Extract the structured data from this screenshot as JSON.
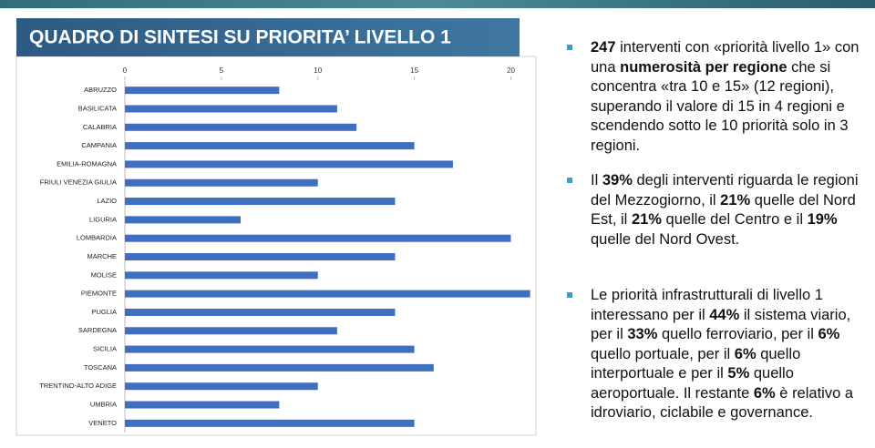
{
  "chart_data": {
    "type": "barh",
    "title": "QUADRO DI SINTESI SU PRIORITA’ LIVELLO 1",
    "categories": [
      "ABRUZZO",
      "BASILICATA",
      "CALABRIA",
      "CAMPANIA",
      "EMILIA-ROMAGNA",
      "FRIULI VENEZIA GIULIA",
      "LAZIO",
      "LIGURIA",
      "LOMBARDIA",
      "MARCHE",
      "MOLISE",
      "PIEMONTE",
      "PUGLIA",
      "SARDEGNA",
      "SICILIA",
      "TOSCANA",
      "TRENTINO-ALTO ADIGE",
      "UMBRIA",
      "VENETO"
    ],
    "values": [
      8,
      11,
      12,
      15,
      17,
      10,
      14,
      6,
      20,
      14,
      10,
      21,
      14,
      11,
      15,
      16,
      10,
      8,
      15
    ],
    "color": "#3f6fc0",
    "xlim": [
      0,
      21.3
    ],
    "xticks": [
      0,
      5,
      10,
      15,
      20
    ]
  },
  "bullets": [
    [
      {
        "text": "247",
        "bold": true
      },
      {
        "text": " interventi con «priorità livello 1» con una ",
        "bold": false
      },
      {
        "text": "numerosità per regione",
        "bold": true
      },
      {
        "text": " che si concentra «tra 10 e 15» (12 regioni), superando il valore di 15 in 4 regioni e scendendo sotto le 10 priorità solo in 3 regioni.",
        "bold": false
      }
    ],
    [
      {
        "text": "Il ",
        "bold": false
      },
      {
        "text": "39%",
        "bold": true
      },
      {
        "text": " degli interventi riguarda le regioni del Mezzogiorno, il ",
        "bold": false
      },
      {
        "text": "21%",
        "bold": true
      },
      {
        "text": " quelle del Nord Est, il ",
        "bold": false
      },
      {
        "text": "21%",
        "bold": true
      },
      {
        "text": " quelle del Centro e il ",
        "bold": false
      },
      {
        "text": "19%",
        "bold": true
      },
      {
        "text": " quelle del Nord Ovest.",
        "bold": false
      }
    ],
    [
      {
        "text": "Le priorità infrastrutturali di livello 1 interessano per il ",
        "bold": false
      },
      {
        "text": "44%",
        "bold": true
      },
      {
        "text": " il sistema viario, per il ",
        "bold": false
      },
      {
        "text": "33%",
        "bold": true
      },
      {
        "text": " quello ferroviario, per il ",
        "bold": false
      },
      {
        "text": "6%",
        "bold": true
      },
      {
        "text": " quello portuale, per il ",
        "bold": false
      },
      {
        "text": "6%",
        "bold": true
      },
      {
        "text": " quello interportuale e per il ",
        "bold": false
      },
      {
        "text": "5%",
        "bold": true
      },
      {
        "text": " quello aeroportuale. Il restante ",
        "bold": false
      },
      {
        "text": "6%",
        "bold": true
      },
      {
        "text": " è relativo a idroviario, ciclabile e governance.",
        "bold": false
      }
    ]
  ]
}
